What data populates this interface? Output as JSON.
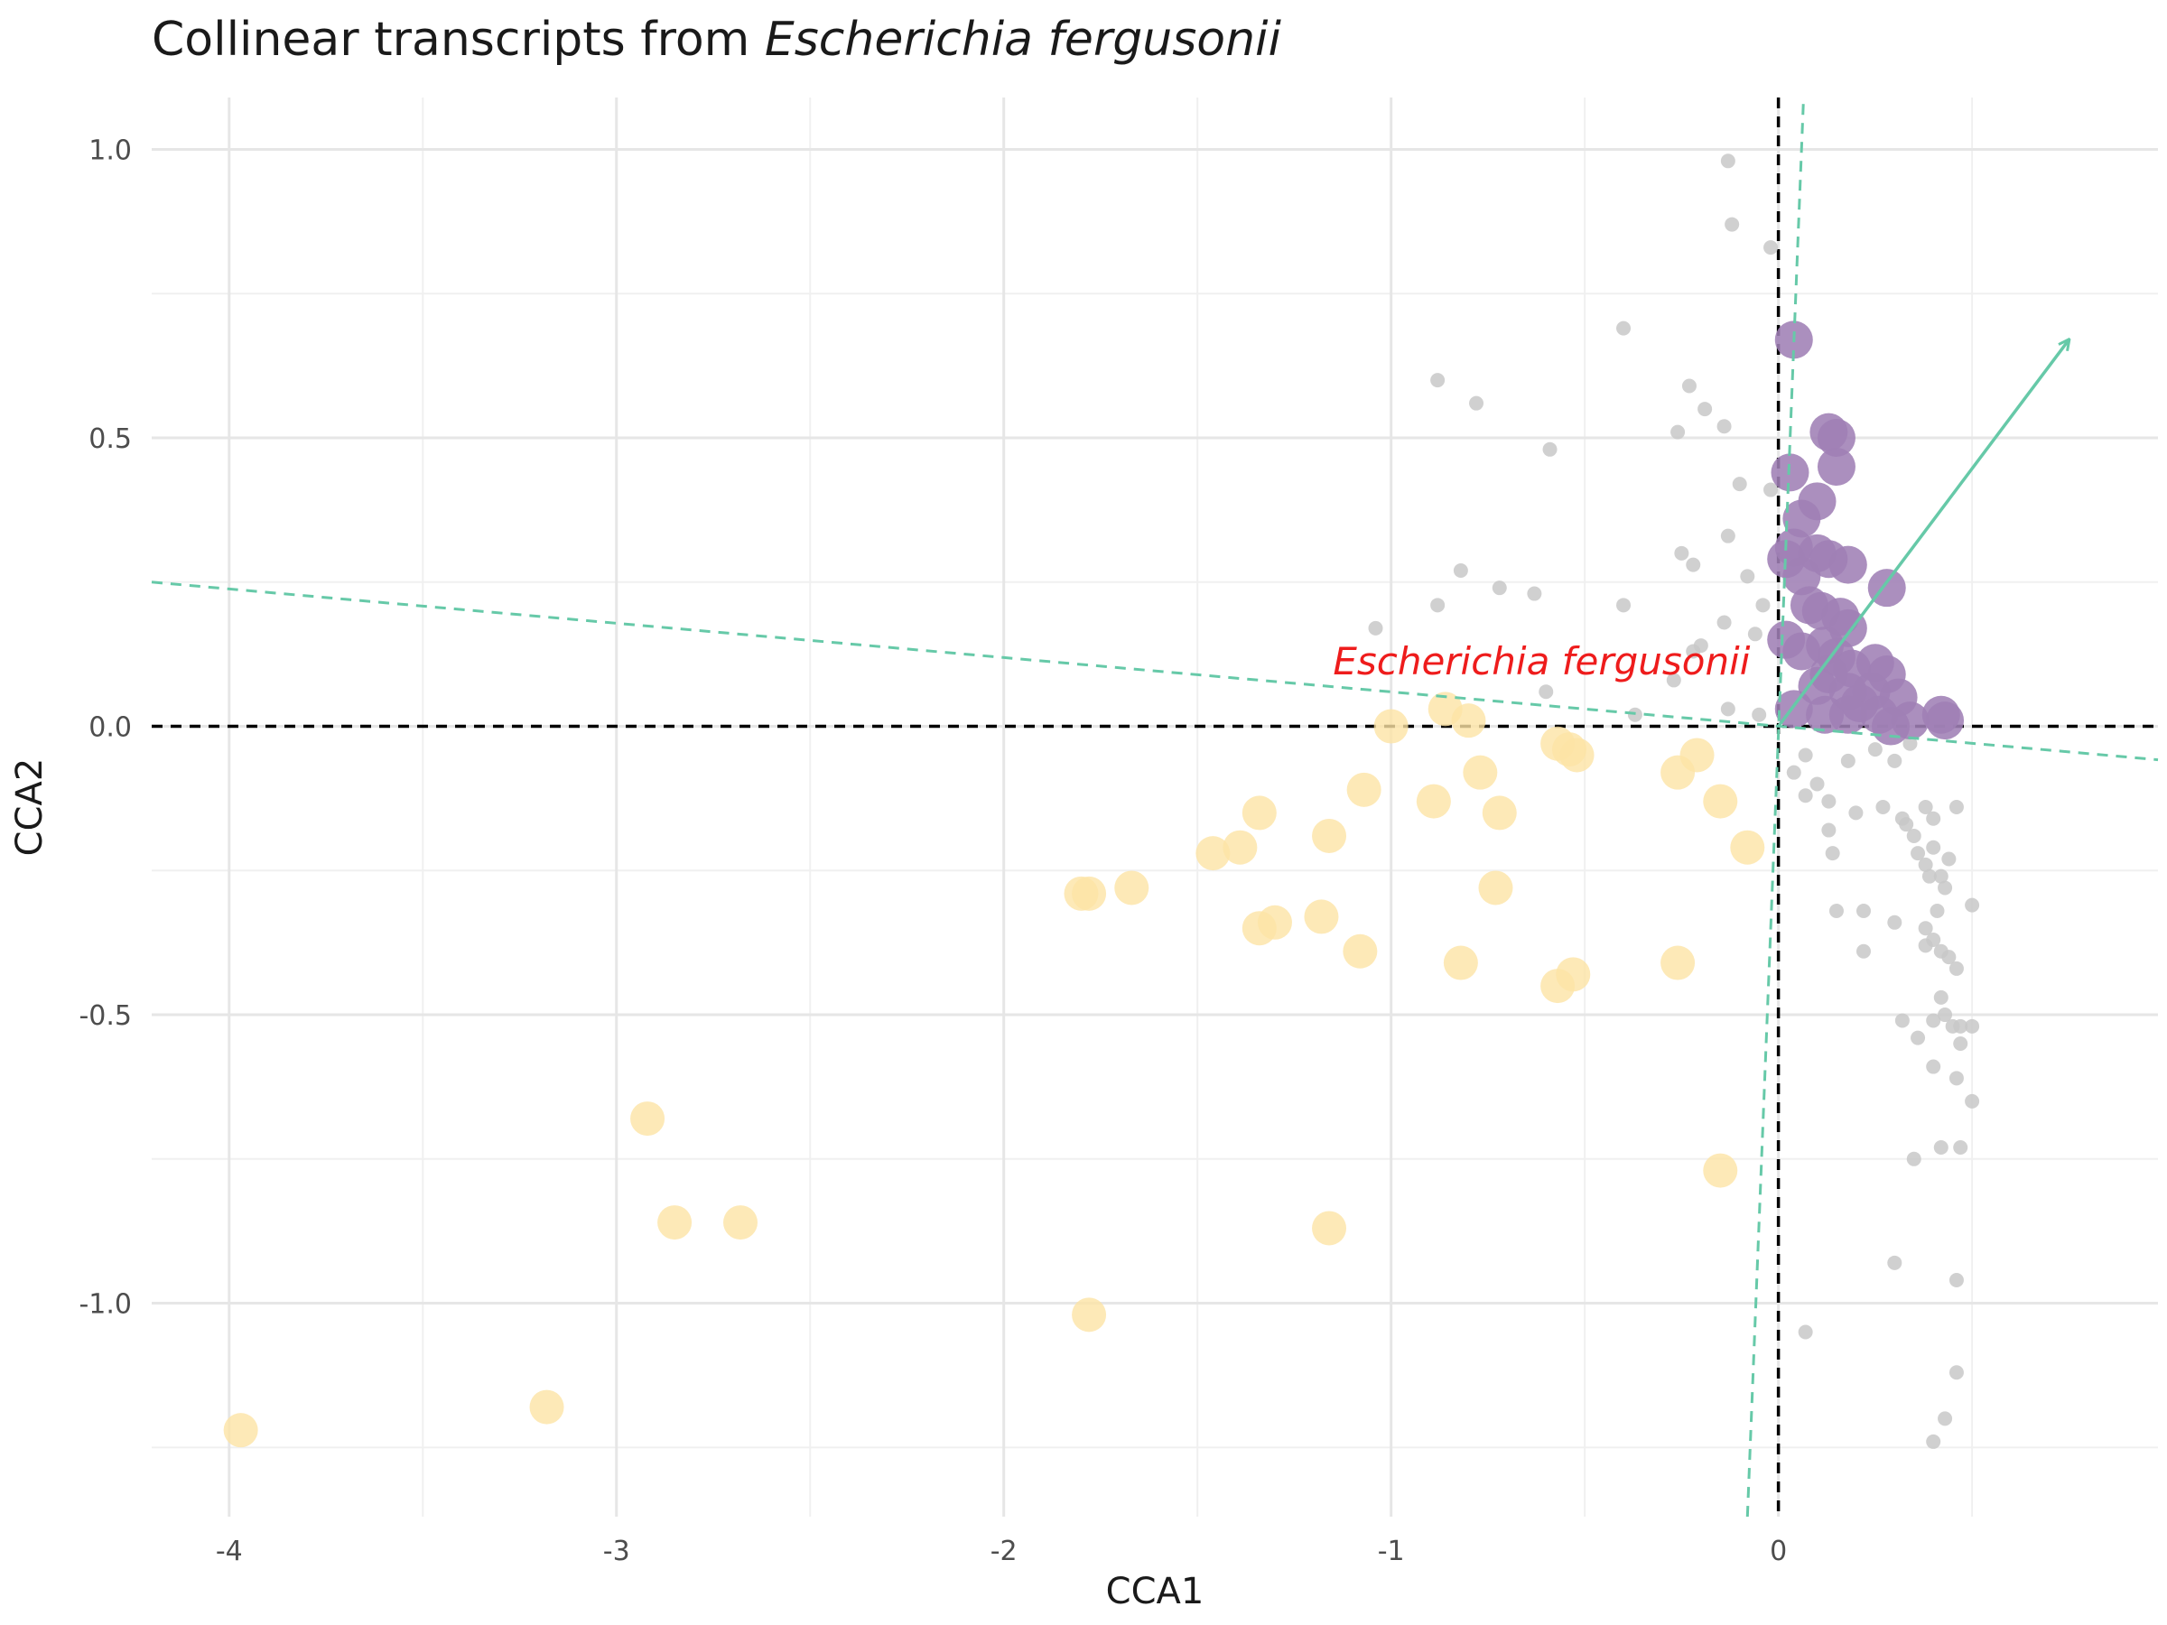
{
  "chart_data": {
    "type": "scatter",
    "title_prefix": "Collinear transcripts from ",
    "title_species": "Escherichia fergusonii",
    "xlabel": "CCA1",
    "ylabel": "CCA2",
    "xlim": [
      -4.2,
      0.98
    ],
    "ylim": [
      -1.37,
      1.09
    ],
    "x_major_ticks": [
      -4,
      -3,
      -2,
      -1,
      0
    ],
    "x_tick_labels": [
      "-4",
      "-3",
      "-2",
      "-1",
      "0"
    ],
    "y_major_ticks": [
      1.0,
      0.5,
      0.0,
      -0.5,
      -1.0
    ],
    "y_tick_labels": [
      "1.0",
      "0.5",
      "0.0",
      "-0.5",
      "-1.0"
    ],
    "grid": true,
    "reference_lines": {
      "x": 0,
      "y": 0,
      "style": "dashed",
      "color": "#000000"
    },
    "annotation": {
      "text": "Escherichia fergusonii",
      "x": -1.15,
      "y": 0.09,
      "color": "#ee1c1c"
    },
    "vector": {
      "from": [
        0,
        0
      ],
      "to": [
        0.75,
        0.67
      ],
      "color": "#66c9a8"
    },
    "dashed_axes": [
      {
        "from": [
          -4.2,
          0.25
        ],
        "to": [
          0.98,
          -0.058
        ],
        "color": "#66c9a8"
      },
      {
        "from": [
          -0.08,
          -1.37
        ],
        "to": [
          0.065,
          1.09
        ],
        "color": "#66c9a8"
      }
    ],
    "series": [
      {
        "color": "#c8c8c8",
        "radius": 8,
        "opacity": 0.85,
        "points": [
          [
            -0.13,
            0.98
          ],
          [
            -0.12,
            0.87
          ],
          [
            -0.02,
            0.83
          ],
          [
            -0.4,
            0.69
          ],
          [
            -0.88,
            0.6
          ],
          [
            -0.78,
            0.56
          ],
          [
            -0.23,
            0.59
          ],
          [
            -0.19,
            0.55
          ],
          [
            -0.26,
            0.51
          ],
          [
            -0.14,
            0.52
          ],
          [
            -0.59,
            0.48
          ],
          [
            -0.1,
            0.42
          ],
          [
            -0.02,
            0.41
          ],
          [
            -0.13,
            0.33
          ],
          [
            -0.25,
            0.3
          ],
          [
            -0.22,
            0.28
          ],
          [
            -0.82,
            0.27
          ],
          [
            -0.72,
            0.24
          ],
          [
            -0.63,
            0.23
          ],
          [
            -0.88,
            0.21
          ],
          [
            -0.4,
            0.21
          ],
          [
            -0.04,
            0.21
          ],
          [
            -0.14,
            0.18
          ],
          [
            -0.06,
            0.16
          ],
          [
            -1.04,
            0.17
          ],
          [
            -0.08,
            0.26
          ],
          [
            -0.2,
            0.14
          ],
          [
            -0.22,
            0.13
          ],
          [
            -0.6,
            0.06
          ],
          [
            -0.27,
            0.08
          ],
          [
            -0.13,
            0.03
          ],
          [
            -0.37,
            0.02
          ],
          [
            -0.05,
            0.02
          ],
          [
            0.07,
            -0.05
          ],
          [
            0.04,
            -0.08
          ],
          [
            0.1,
            -0.1
          ],
          [
            0.18,
            -0.06
          ],
          [
            0.25,
            -0.04
          ],
          [
            0.3,
            -0.06
          ],
          [
            0.34,
            -0.03
          ],
          [
            0.07,
            -0.12
          ],
          [
            0.13,
            -0.13
          ],
          [
            0.2,
            -0.15
          ],
          [
            0.27,
            -0.14
          ],
          [
            0.32,
            -0.16
          ],
          [
            0.38,
            -0.14
          ],
          [
            0.4,
            -0.16
          ],
          [
            0.46,
            -0.14
          ],
          [
            0.13,
            -0.18
          ],
          [
            0.14,
            -0.22
          ],
          [
            0.33,
            -0.17
          ],
          [
            0.35,
            -0.19
          ],
          [
            0.36,
            -0.22
          ],
          [
            0.38,
            -0.24
          ],
          [
            0.4,
            -0.21
          ],
          [
            0.39,
            -0.26
          ],
          [
            0.42,
            -0.26
          ],
          [
            0.44,
            -0.23
          ],
          [
            0.43,
            -0.28
          ],
          [
            0.15,
            -0.32
          ],
          [
            0.22,
            -0.32
          ],
          [
            0.3,
            -0.34
          ],
          [
            0.38,
            -0.35
          ],
          [
            0.41,
            -0.32
          ],
          [
            0.38,
            -0.38
          ],
          [
            0.22,
            -0.39
          ],
          [
            0.4,
            -0.37
          ],
          [
            0.42,
            -0.39
          ],
          [
            0.44,
            -0.4
          ],
          [
            0.46,
            -0.42
          ],
          [
            0.5,
            -0.31
          ],
          [
            0.42,
            -0.47
          ],
          [
            0.43,
            -0.5
          ],
          [
            0.4,
            -0.51
          ],
          [
            0.32,
            -0.51
          ],
          [
            0.45,
            -0.52
          ],
          [
            0.47,
            -0.52
          ],
          [
            0.5,
            -0.52
          ],
          [
            0.47,
            -0.55
          ],
          [
            0.36,
            -0.54
          ],
          [
            0.4,
            -0.59
          ],
          [
            0.46,
            -0.61
          ],
          [
            0.5,
            -0.65
          ],
          [
            0.42,
            -0.73
          ],
          [
            0.47,
            -0.73
          ],
          [
            0.35,
            -0.75
          ],
          [
            0.3,
            -0.93
          ],
          [
            0.46,
            -0.96
          ],
          [
            0.07,
            -1.05
          ],
          [
            0.46,
            -1.12
          ],
          [
            0.43,
            -1.2
          ],
          [
            0.4,
            -1.24
          ]
        ]
      },
      {
        "color": "#fde3a5",
        "radius": 19,
        "opacity": 0.8,
        "points": [
          [
            -3.97,
            -1.22
          ],
          [
            -3.18,
            -1.18
          ],
          [
            -2.92,
            -0.68
          ],
          [
            -2.85,
            -0.86
          ],
          [
            -2.68,
            -0.86
          ],
          [
            -1.8,
            -0.29
          ],
          [
            -1.78,
            -0.29
          ],
          [
            -1.67,
            -0.28
          ],
          [
            -1.78,
            -1.02
          ],
          [
            -1.46,
            -0.22
          ],
          [
            -1.39,
            -0.21
          ],
          [
            -1.34,
            -0.15
          ],
          [
            -1.34,
            -0.35
          ],
          [
            -1.3,
            -0.34
          ],
          [
            -1.18,
            -0.33
          ],
          [
            -1.16,
            -0.19
          ],
          [
            -1.16,
            -0.87
          ],
          [
            -1.07,
            -0.11
          ],
          [
            -1.08,
            -0.39
          ],
          [
            -1.0,
            0.0
          ],
          [
            -0.89,
            -0.13
          ],
          [
            -0.86,
            0.03
          ],
          [
            -0.82,
            -0.41
          ],
          [
            -0.8,
            0.01
          ],
          [
            -0.77,
            -0.08
          ],
          [
            -0.72,
            -0.15
          ],
          [
            -0.73,
            -0.28
          ],
          [
            -0.57,
            -0.03
          ],
          [
            -0.54,
            -0.04
          ],
          [
            -0.52,
            -0.05
          ],
          [
            -0.57,
            -0.45
          ],
          [
            -0.53,
            -0.43
          ],
          [
            -0.26,
            -0.08
          ],
          [
            -0.26,
            -0.41
          ],
          [
            -0.21,
            -0.05
          ],
          [
            -0.15,
            -0.13
          ],
          [
            -0.15,
            -0.77
          ],
          [
            -0.08,
            -0.21
          ]
        ]
      },
      {
        "color": "#9f7fb5",
        "radius": 21,
        "opacity": 0.88,
        "points": [
          [
            0.04,
            0.67
          ],
          [
            0.13,
            0.51
          ],
          [
            0.15,
            0.5
          ],
          [
            0.03,
            0.44
          ],
          [
            0.15,
            0.45
          ],
          [
            0.1,
            0.39
          ],
          [
            0.06,
            0.36
          ],
          [
            0.04,
            0.31
          ],
          [
            0.02,
            0.29
          ],
          [
            0.1,
            0.3
          ],
          [
            0.13,
            0.29
          ],
          [
            0.18,
            0.28
          ],
          [
            0.06,
            0.26
          ],
          [
            0.28,
            0.24
          ],
          [
            0.08,
            0.21
          ],
          [
            0.11,
            0.2
          ],
          [
            0.16,
            0.19
          ],
          [
            0.18,
            0.17
          ],
          [
            0.12,
            0.14
          ],
          [
            0.02,
            0.15
          ],
          [
            0.06,
            0.13
          ],
          [
            0.15,
            0.12
          ],
          [
            0.19,
            0.1
          ],
          [
            0.25,
            0.11
          ],
          [
            0.13,
            0.09
          ],
          [
            0.28,
            0.09
          ],
          [
            0.1,
            0.07
          ],
          [
            0.18,
            0.06
          ],
          [
            0.24,
            0.06
          ],
          [
            0.21,
            0.04
          ],
          [
            0.31,
            0.05
          ],
          [
            0.04,
            0.03
          ],
          [
            0.12,
            0.02
          ],
          [
            0.18,
            0.02
          ],
          [
            0.26,
            0.02
          ],
          [
            0.34,
            0.01
          ],
          [
            0.42,
            0.02
          ],
          [
            0.43,
            0.01
          ],
          [
            0.29,
            0.0
          ]
        ]
      }
    ]
  }
}
